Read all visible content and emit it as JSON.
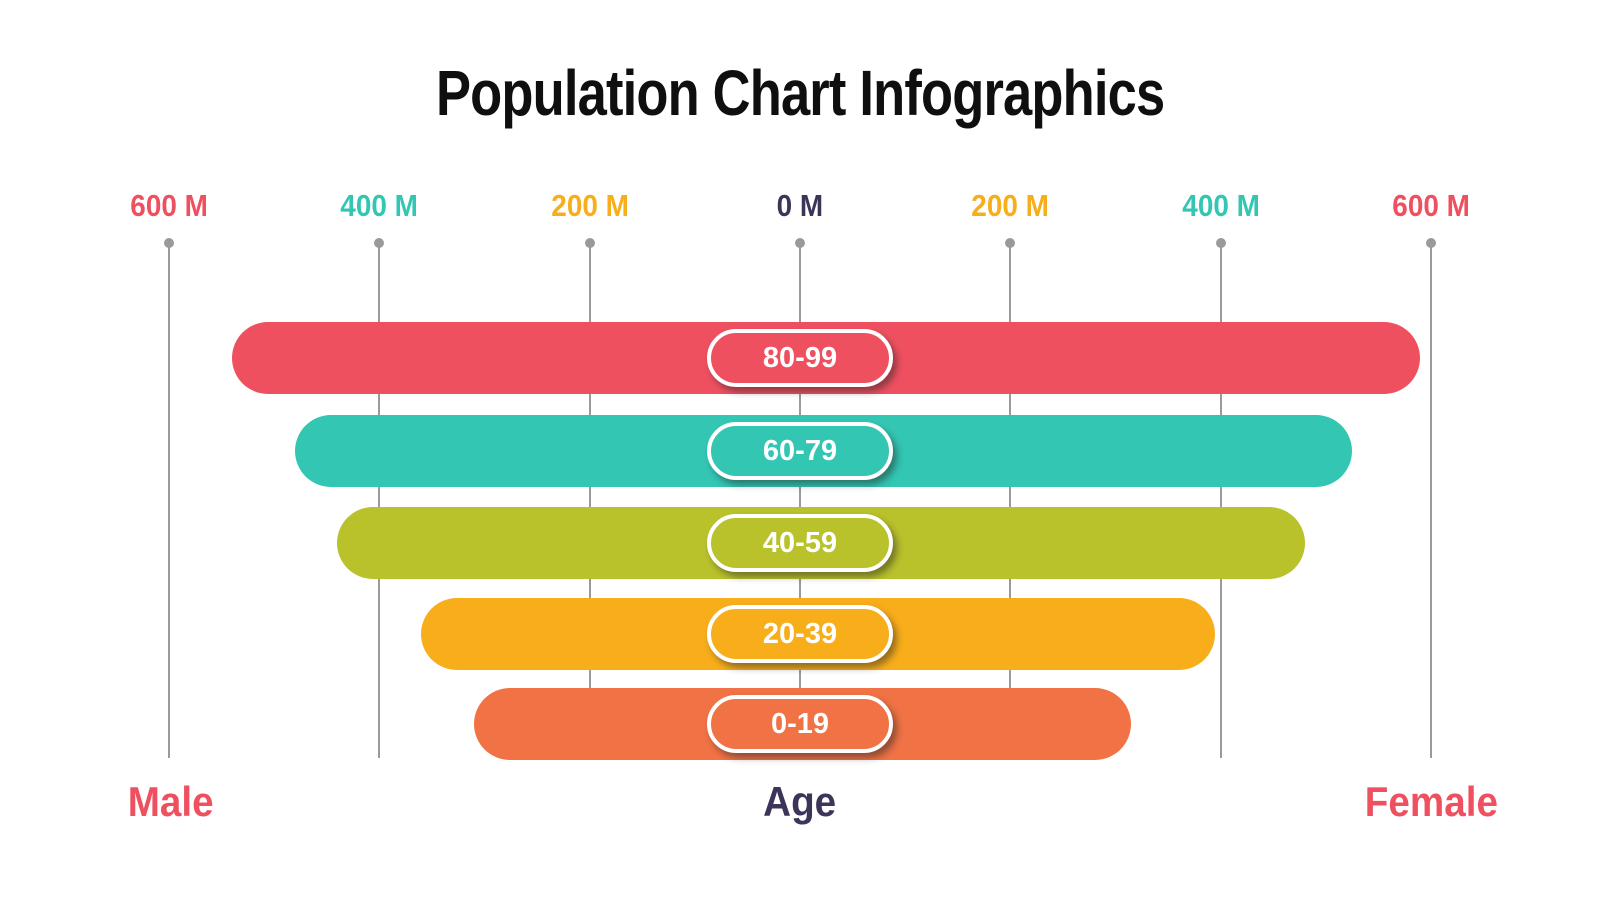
{
  "page": {
    "title": "Population Chart Infographics"
  },
  "footer": {
    "male": "Male",
    "age": "Age",
    "female": "Female"
  },
  "colors": {
    "title": "#0f0f0f",
    "navy": "#3d3459",
    "pink": "#ef5060",
    "teal": "#33c6b3",
    "green": "#b9c12b",
    "amber": "#f8ad1b",
    "orange": "#f07245",
    "gridline_gray": "#9a9a9a",
    "pill_text": "#ffffff"
  },
  "chart_data": {
    "type": "bar",
    "subtype": "population-pyramid-horizontal",
    "title": "Population Chart Infographics",
    "unit": "M",
    "categories": [
      "80-99",
      "60-79",
      "40-59",
      "20-39",
      "0-19"
    ],
    "series": [
      {
        "name": "Male",
        "side": "left",
        "values": [
          540,
          480,
          440,
          360,
          310
        ]
      },
      {
        "name": "Female",
        "side": "right",
        "values": [
          590,
          525,
          480,
          395,
          315
        ]
      }
    ],
    "bar_colors": [
      "#ef5060",
      "#33c6b3",
      "#b9c12b",
      "#f8ad1b",
      "#f07245"
    ],
    "axis_ticks": [
      {
        "label": "600 M",
        "value": -600,
        "color": "#ef5060"
      },
      {
        "label": "400 M",
        "value": -400,
        "color": "#33c6b3"
      },
      {
        "label": "200 M",
        "value": -200,
        "color": "#f8ad1b"
      },
      {
        "label": "0 M",
        "value": 0,
        "color": "#3d3459"
      },
      {
        "label": "200 M",
        "value": 200,
        "color": "#f8ad1b"
      },
      {
        "label": "400 M",
        "value": 400,
        "color": "#33c6b3"
      },
      {
        "label": "600 M",
        "value": 600,
        "color": "#ef5060"
      }
    ],
    "xlim": [
      -650,
      650
    ],
    "grid": true,
    "legend_position": "none",
    "side_labels": {
      "left": "Male",
      "center": "Age",
      "right": "Female"
    }
  }
}
